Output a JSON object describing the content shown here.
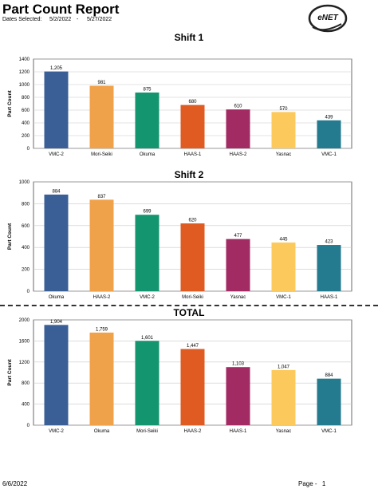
{
  "header": {
    "title": "Part Count Report",
    "dates_label": "Dates Selected:",
    "date_from": "5/2/2022",
    "date_sep": "-",
    "date_to": "5/27/2022",
    "logo_text": "eNET"
  },
  "footer": {
    "date": "6/6/2022",
    "page_label": "Page -",
    "page_number": "1"
  },
  "chart_data": [
    {
      "type": "bar",
      "title": "Shift 1",
      "ylabel": "Part Count",
      "xlabel": "",
      "ylim": [
        0,
        1400
      ],
      "yticks": [
        0,
        200,
        400,
        600,
        800,
        1000,
        1200,
        1400
      ],
      "grid": true,
      "categories": [
        "VMC-2",
        "Mori-Seiki",
        "Okuma",
        "HAAS-1",
        "HAAS-2",
        "Yasnac",
        "VMC-1"
      ],
      "values": [
        1205,
        981,
        875,
        680,
        610,
        570,
        439
      ],
      "value_labels": [
        "1,205",
        "981",
        "875",
        "680",
        "610",
        "570",
        "439"
      ],
      "colors": [
        "#3a5f96",
        "#f0a24b",
        "#13956f",
        "#df5b21",
        "#a22b64",
        "#fcca5c",
        "#247a8e"
      ]
    },
    {
      "type": "bar",
      "title": "Shift 2",
      "ylabel": "Part Count",
      "xlabel": "",
      "ylim": [
        0,
        1000
      ],
      "yticks": [
        0,
        200,
        400,
        600,
        800,
        1000
      ],
      "grid": true,
      "categories": [
        "Okuma",
        "HAAS-2",
        "VMC-2",
        "Mori-Seiki",
        "Yasnac",
        "VMC-1",
        "HAAS-1"
      ],
      "values": [
        884,
        837,
        699,
        620,
        477,
        445,
        423
      ],
      "value_labels": [
        "884",
        "837",
        "699",
        "620",
        "477",
        "445",
        "423"
      ],
      "colors": [
        "#3a5f96",
        "#f0a24b",
        "#13956f",
        "#df5b21",
        "#a22b64",
        "#fcca5c",
        "#247a8e"
      ]
    },
    {
      "type": "bar",
      "title": "TOTAL",
      "ylabel": "Part Count",
      "xlabel": "",
      "ylim": [
        0,
        2000
      ],
      "yticks": [
        0,
        400,
        800,
        1200,
        1600,
        2000
      ],
      "grid": true,
      "categories": [
        "VMC-2",
        "Okuma",
        "Mori-Seiki",
        "HAAS-2",
        "HAAS-1",
        "Yasnac",
        "VMC-1"
      ],
      "values": [
        1904,
        1759,
        1601,
        1447,
        1103,
        1047,
        884
      ],
      "value_labels": [
        "1,904",
        "1,759",
        "1,601",
        "1,447",
        "1,103",
        "1,047",
        "884"
      ],
      "colors": [
        "#3a5f96",
        "#f0a24b",
        "#13956f",
        "#df5b21",
        "#a22b64",
        "#fcca5c",
        "#247a8e"
      ]
    }
  ]
}
